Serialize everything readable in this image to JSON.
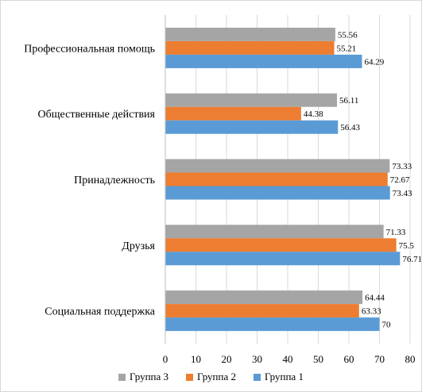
{
  "chart_data": {
    "type": "bar",
    "orientation": "horizontal",
    "categories": [
      "Профессиональная помощь",
      "Общественные действия",
      "Принадлежность",
      "Друзья",
      "Социальная поддержка"
    ],
    "series": [
      {
        "name": "Группа 3",
        "color": "#a5a5a5",
        "values": [
          55.56,
          56.11,
          73.33,
          71.33,
          64.44
        ],
        "labels": [
          "55.56",
          "56.11",
          "73.33",
          "71.33",
          "64.44"
        ]
      },
      {
        "name": "Группа 2",
        "color": "#ed7d31",
        "values": [
          55.21,
          44.38,
          72.67,
          75.5,
          63.33
        ],
        "labels": [
          "55.21",
          "44.38",
          "72.67",
          "75.5",
          "63.33"
        ]
      },
      {
        "name": "Группа 1",
        "color": "#5b9bd5",
        "values": [
          64.29,
          56.43,
          73.43,
          76.71,
          70
        ],
        "labels": [
          "64.29",
          "56.43",
          "73.43",
          "76.71",
          "70"
        ]
      }
    ],
    "xlim": [
      0,
      80
    ],
    "xticks": [
      0,
      10,
      20,
      30,
      40,
      50,
      60,
      70,
      80
    ],
    "grid": true,
    "legend": "bottom",
    "title": "",
    "xlabel": "",
    "ylabel": ""
  }
}
